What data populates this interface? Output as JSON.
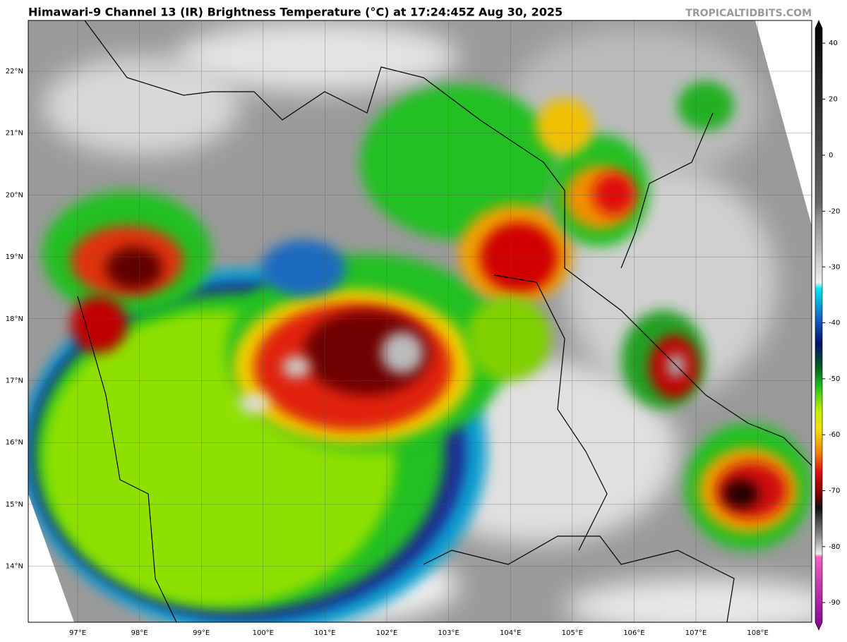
{
  "header": {
    "title": "Himawari-9 Channel 13 (IR) Brightness Temperature (°C) at 17:24:45Z Aug 30, 2025",
    "watermark": "TROPICALTIDBITS.COM"
  },
  "map": {
    "lat_labels": [
      "22°N",
      "21°N",
      "20°N",
      "19°N",
      "18°N",
      "17°N",
      "16°N",
      "15°N",
      "14°N"
    ],
    "lon_labels": [
      "97°E",
      "98°E",
      "99°E",
      "100°E",
      "101°E",
      "102°E",
      "103°E",
      "104°E",
      "105°E",
      "106°E",
      "107°E",
      "108°E"
    ]
  },
  "colorbar": {
    "ticks": [
      40,
      20,
      0,
      -20,
      -30,
      -40,
      -50,
      -60,
      -70,
      -80,
      -90
    ]
  }
}
